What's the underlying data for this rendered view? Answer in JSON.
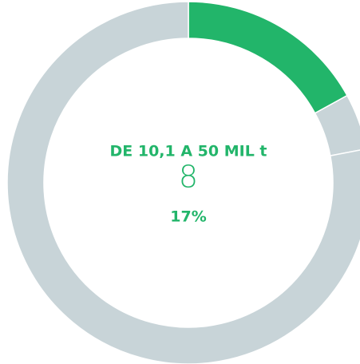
{
  "chart_data": {
    "type": "donut",
    "center_label": "DE 10,1 A 50 MIL t",
    "center_value": 8,
    "categories": [
      "DE 10,1 A 50 MIL t",
      null,
      null
    ],
    "values": [
      17,
      5,
      78
    ],
    "value_labels": [
      "17%",
      null,
      null
    ],
    "colors": [
      "#22b56a",
      "#c8d4d8",
      "#c8d4d8"
    ]
  }
}
